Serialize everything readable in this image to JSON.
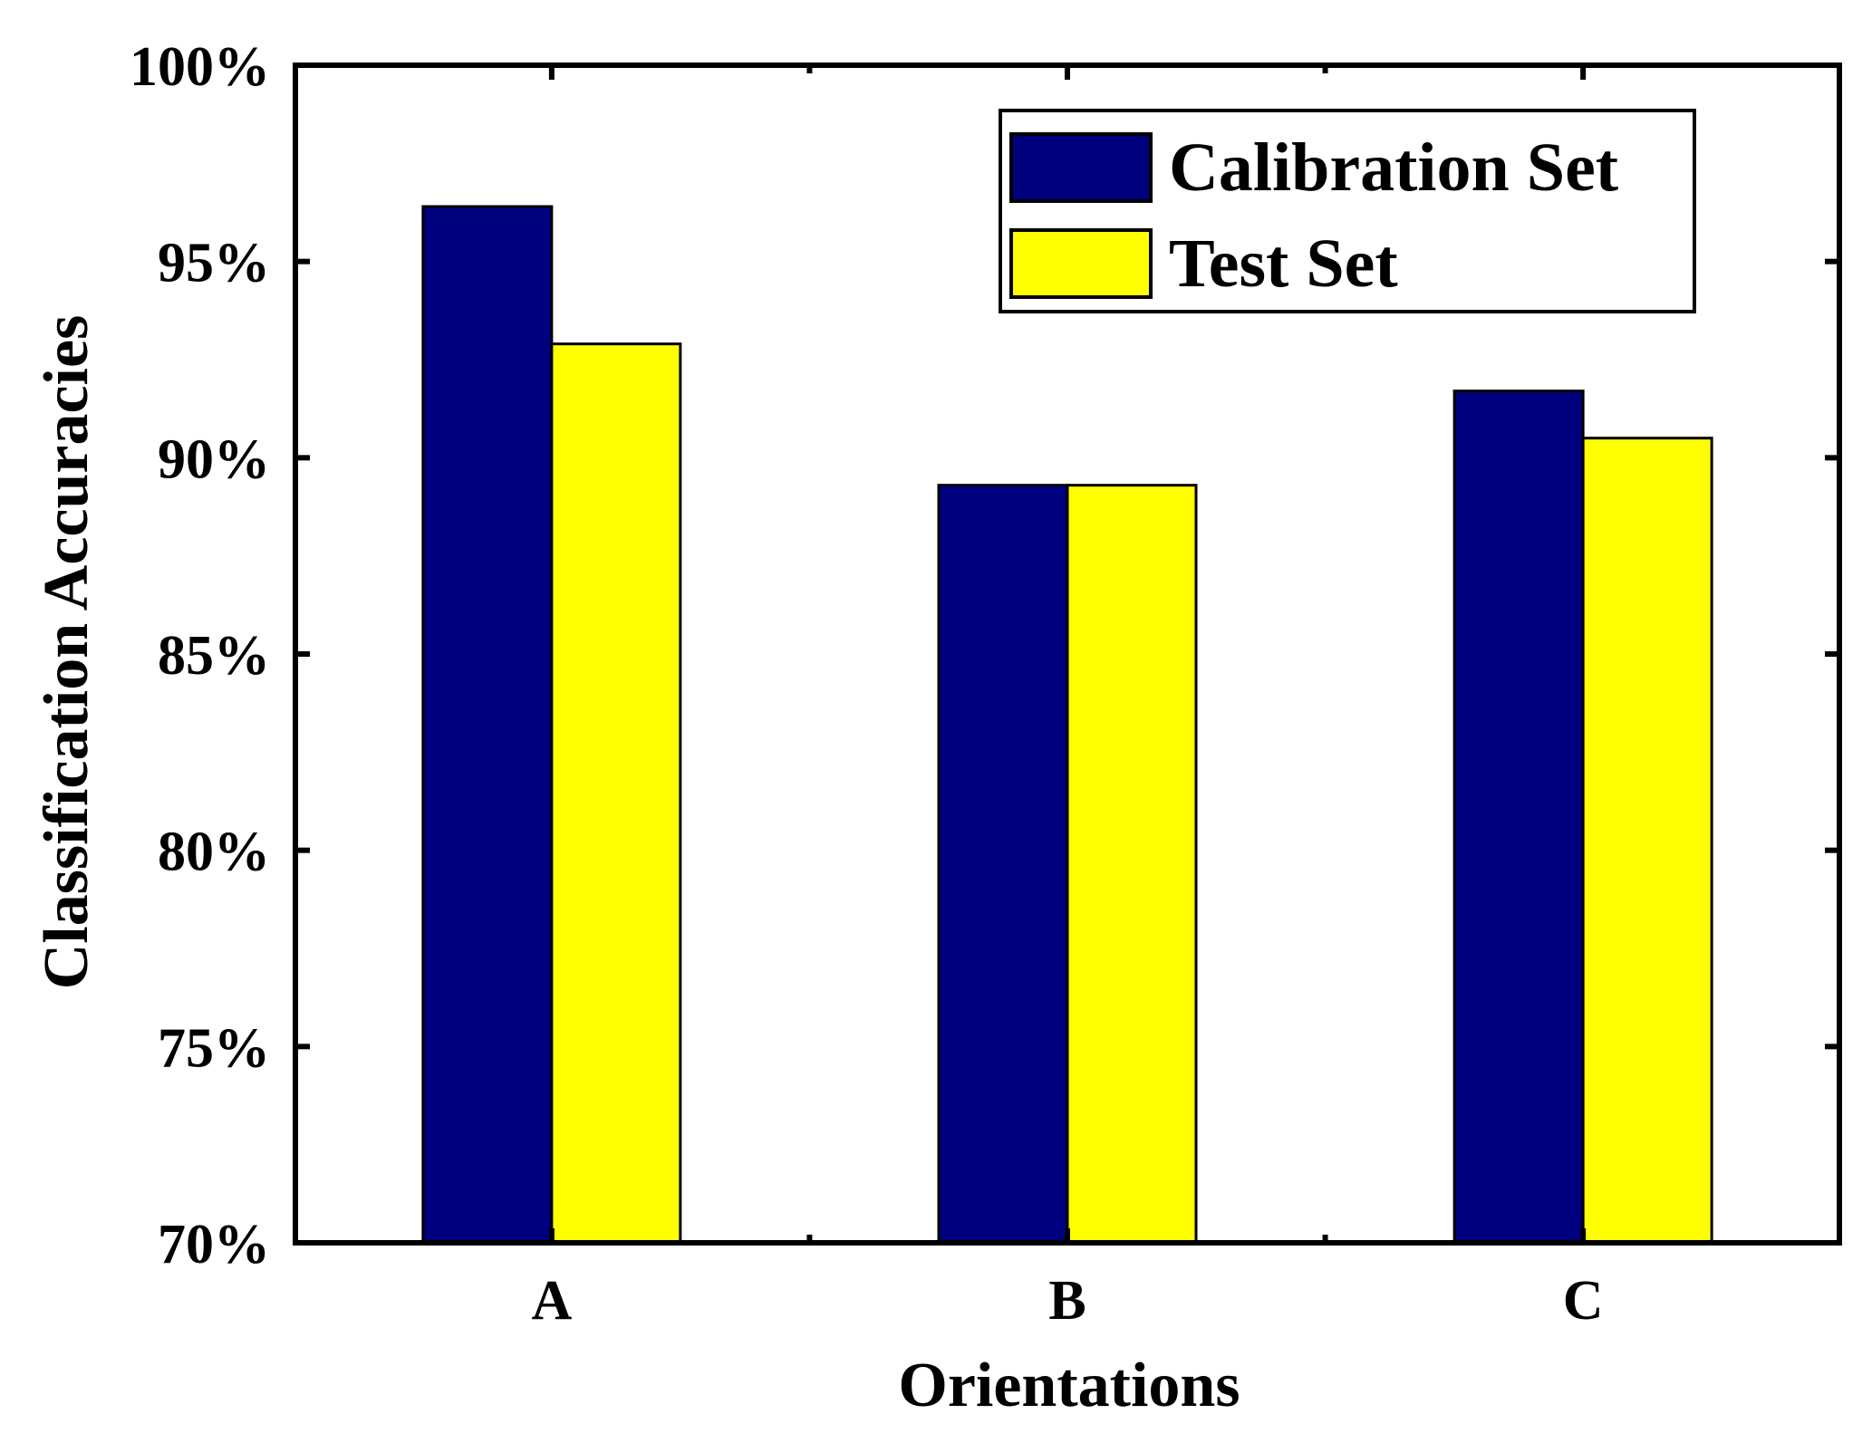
{
  "chart_data": {
    "type": "bar",
    "title": "",
    "xlabel": "Orientations",
    "ylabel": "Classification Accuracies",
    "categories": [
      "A",
      "B",
      "C"
    ],
    "series": [
      {
        "name": "Calibration Set",
        "values": [
          96.4,
          89.3,
          91.7
        ],
        "color": "#00007F"
      },
      {
        "name": "Test Set",
        "values": [
          92.9,
          89.3,
          90.5
        ],
        "color": "#FFFF00"
      }
    ],
    "ylim": [
      70,
      100
    ],
    "yticks": [
      70,
      75,
      80,
      85,
      90,
      95,
      100
    ],
    "ytick_labels": [
      "70%",
      "75%",
      "80%",
      "85%",
      "90%",
      "95%",
      "100%"
    ],
    "grid": false,
    "legend_position": "top-right"
  }
}
